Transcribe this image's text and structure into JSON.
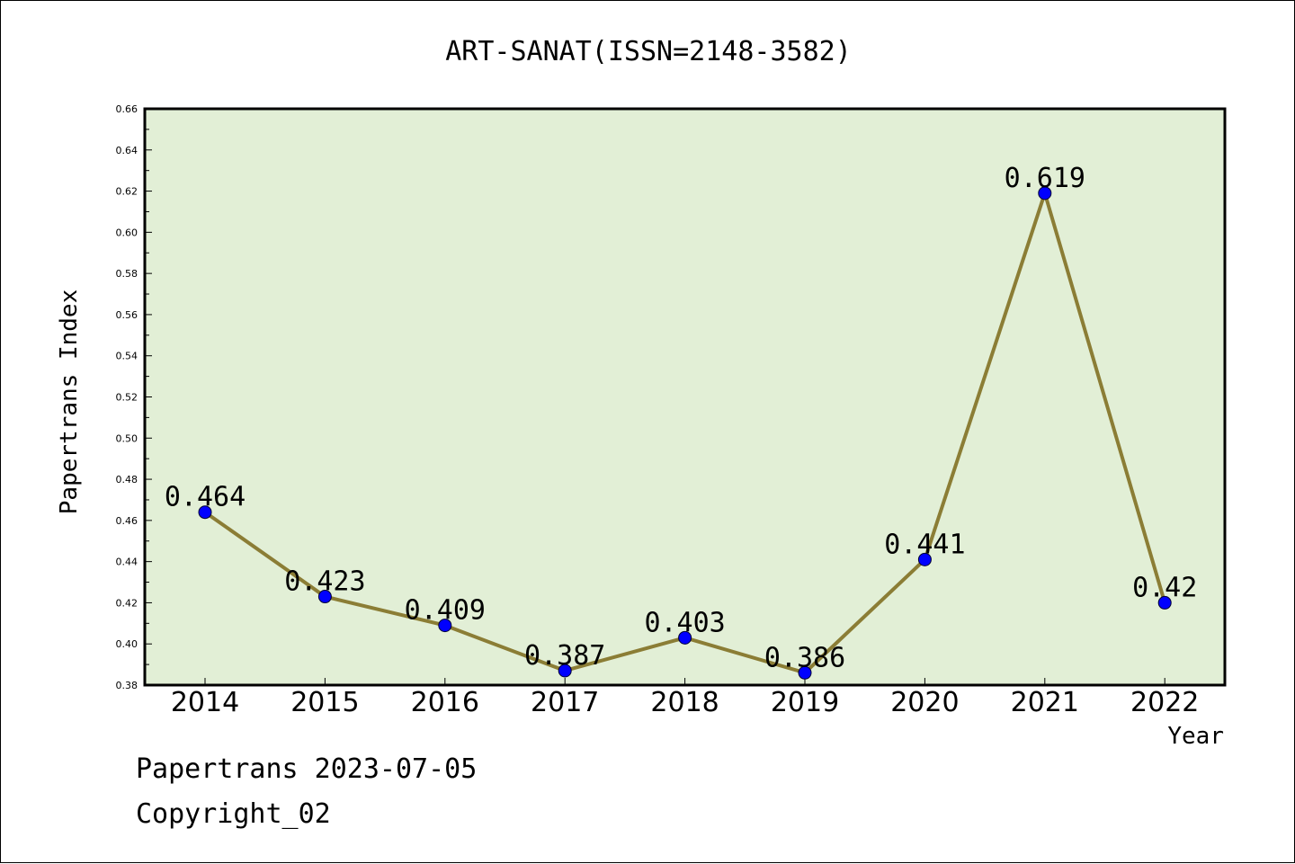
{
  "chart_data": {
    "type": "line",
    "title": "ART-SANAT(ISSN=2148-3582)",
    "xlabel": "Year",
    "ylabel": "Papertrans Index",
    "categories": [
      "2014",
      "2015",
      "2016",
      "2017",
      "2018",
      "2019",
      "2020",
      "2021",
      "2022"
    ],
    "series": [
      {
        "values": [
          0.464,
          0.423,
          0.409,
          0.387,
          0.403,
          0.386,
          0.441,
          0.619,
          0.42
        ],
        "labels": [
          "0.464",
          "0.423",
          "0.409",
          "0.387",
          "0.403",
          "0.386",
          "0.441",
          "0.619",
          "0.42"
        ]
      }
    ],
    "ylim": [
      0.38,
      0.66
    ],
    "yticks": [
      "0.38",
      "0.40",
      "0.42",
      "0.44",
      "0.46",
      "0.48",
      "0.50",
      "0.52",
      "0.54",
      "0.56",
      "0.58",
      "0.60",
      "0.62",
      "0.64",
      "0.66"
    ],
    "grid": false,
    "legend": "none",
    "colors": {
      "plot_background": "#e2efd6",
      "line": "#8b7d35",
      "marker": "#0000ff"
    }
  },
  "footer": {
    "line1": "Papertrans 2023-07-05",
    "line2": "Copyright_02"
  }
}
